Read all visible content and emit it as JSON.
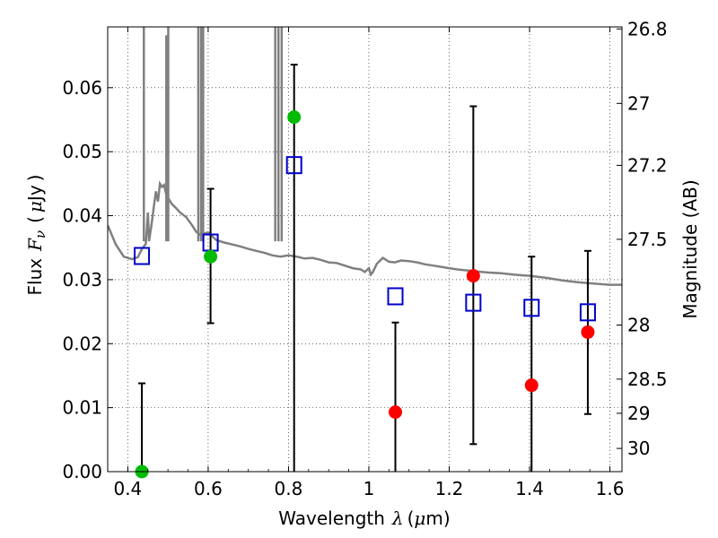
{
  "chart_data": {
    "type": "scatter",
    "xlabel_text": "Wavelength",
    "xlabel_symbol": "λ",
    "xlabel_unit_open": "(",
    "xlabel_unit_mu": "μ",
    "xlabel_unit_rest": "m)",
    "ylabel_text": "Flux",
    "ylabel_symbol": "F",
    "ylabel_subscript": "ν",
    "ylabel_unit_open": "(",
    "ylabel_unit_mu": "μ",
    "ylabel_unit_rest": "Jy",
    "ylabel_unit_close": ")",
    "y2label": "Magnitude (AB)",
    "xlim": [
      0.35,
      1.63
    ],
    "ylim": [
      0.0,
      0.0695
    ],
    "xticks": [
      {
        "value": 0.4,
        "label": "0.4"
      },
      {
        "value": 0.6,
        "label": "0.6"
      },
      {
        "value": 0.8,
        "label": "0.8"
      },
      {
        "value": 1.0,
        "label": "1"
      },
      {
        "value": 1.2,
        "label": "1.2"
      },
      {
        "value": 1.4,
        "label": "1.4"
      },
      {
        "value": 1.6,
        "label": "1.6"
      }
    ],
    "yticks": [
      {
        "value": 0.0,
        "label": "0.00"
      },
      {
        "value": 0.01,
        "label": "0.01"
      },
      {
        "value": 0.02,
        "label": "0.02"
      },
      {
        "value": 0.03,
        "label": "0.03"
      },
      {
        "value": 0.04,
        "label": "0.04"
      },
      {
        "value": 0.05,
        "label": "0.05"
      },
      {
        "value": 0.06,
        "label": "0.06"
      }
    ],
    "y2ticks": [
      {
        "value": 26.8,
        "label": "26.8"
      },
      {
        "value": 27.0,
        "label": "27"
      },
      {
        "value": 27.2,
        "label": "27.2"
      },
      {
        "value": 27.5,
        "label": "27.5"
      },
      {
        "value": 28.0,
        "label": "28"
      },
      {
        "value": 28.5,
        "label": "28.5"
      },
      {
        "value": 29.0,
        "label": "29"
      },
      {
        "value": 30.0,
        "label": "30"
      }
    ],
    "grid": true,
    "colors": {
      "model": "#808080",
      "detection": "#00bb00",
      "upper_limit": "#ff0000",
      "synthetic": "#0000cc",
      "errorbar": "#000000"
    },
    "observed": [
      {
        "x": 0.435,
        "y": 0.0,
        "err_low": 0.0,
        "err_high": 0.0138,
        "kind": "detection"
      },
      {
        "x": 0.606,
        "y": 0.0336,
        "err_low": 0.0232,
        "err_high": 0.0442,
        "kind": "detection"
      },
      {
        "x": 0.814,
        "y": 0.0554,
        "err_low": 0.0,
        "err_high": 0.0636,
        "kind": "detection"
      },
      {
        "x": 1.066,
        "y": 0.0093,
        "err_low": 0.0,
        "err_high": 0.0233,
        "kind": "upper_limit"
      },
      {
        "x": 1.26,
        "y": 0.0306,
        "err_low": 0.0043,
        "err_high": 0.0571,
        "kind": "upper_limit"
      },
      {
        "x": 1.405,
        "y": 0.0135,
        "err_low": 0.0,
        "err_high": 0.0336,
        "kind": "upper_limit"
      },
      {
        "x": 1.545,
        "y": 0.0218,
        "err_low": 0.009,
        "err_high": 0.0345,
        "kind": "upper_limit"
      }
    ],
    "synthetic_photometry": [
      {
        "x": 0.435,
        "y": 0.0337
      },
      {
        "x": 0.606,
        "y": 0.0358
      },
      {
        "x": 0.814,
        "y": 0.0479
      },
      {
        "x": 1.066,
        "y": 0.0274
      },
      {
        "x": 1.26,
        "y": 0.0264
      },
      {
        "x": 1.405,
        "y": 0.0256
      },
      {
        "x": 1.545,
        "y": 0.0249
      }
    ],
    "model_spectrum": [
      [
        0.35,
        0.0385
      ],
      [
        0.37,
        0.0355
      ],
      [
        0.39,
        0.0336
      ],
      [
        0.41,
        0.0332
      ],
      [
        0.425,
        0.0335
      ],
      [
        0.435,
        0.0348
      ],
      [
        0.445,
        0.0356
      ],
      [
        0.45,
        0.0405
      ],
      [
        0.453,
        0.036
      ],
      [
        0.46,
        0.039
      ],
      [
        0.465,
        0.0415
      ],
      [
        0.47,
        0.0438
      ],
      [
        0.475,
        0.0422
      ],
      [
        0.48,
        0.045
      ],
      [
        0.485,
        0.0445
      ],
      [
        0.49,
        0.0448
      ],
      [
        0.497,
        0.043
      ],
      [
        0.503,
        0.0425
      ],
      [
        0.51,
        0.0418
      ],
      [
        0.52,
        0.0412
      ],
      [
        0.53,
        0.0405
      ],
      [
        0.545,
        0.0398
      ],
      [
        0.56,
        0.0385
      ],
      [
        0.57,
        0.0375
      ],
      [
        0.58,
        0.037
      ],
      [
        0.59,
        0.0372
      ],
      [
        0.6,
        0.0374
      ],
      [
        0.61,
        0.0368
      ],
      [
        0.62,
        0.0362
      ],
      [
        0.64,
        0.0358
      ],
      [
        0.66,
        0.0355
      ],
      [
        0.68,
        0.0352
      ],
      [
        0.7,
        0.0348
      ],
      [
        0.72,
        0.0345
      ],
      [
        0.74,
        0.0342
      ],
      [
        0.76,
        0.0338
      ],
      [
        0.78,
        0.0336
      ],
      [
        0.8,
        0.0338
      ],
      [
        0.82,
        0.0336
      ],
      [
        0.84,
        0.0333
      ],
      [
        0.86,
        0.0334
      ],
      [
        0.88,
        0.0331
      ],
      [
        0.9,
        0.0327
      ],
      [
        0.92,
        0.0326
      ],
      [
        0.94,
        0.0322
      ],
      [
        0.96,
        0.0318
      ],
      [
        0.98,
        0.0316
      ],
      [
        0.99,
        0.0312
      ],
      [
        1.0,
        0.0318
      ],
      [
        1.005,
        0.0308
      ],
      [
        1.01,
        0.0312
      ],
      [
        1.02,
        0.0325
      ],
      [
        1.035,
        0.0334
      ],
      [
        1.05,
        0.0328
      ],
      [
        1.065,
        0.0327
      ],
      [
        1.08,
        0.033
      ],
      [
        1.1,
        0.0329
      ],
      [
        1.12,
        0.0327
      ],
      [
        1.14,
        0.0324
      ],
      [
        1.16,
        0.0322
      ],
      [
        1.18,
        0.032
      ],
      [
        1.2,
        0.0318
      ],
      [
        1.22,
        0.0316
      ],
      [
        1.25,
        0.0314
      ],
      [
        1.28,
        0.0312
      ],
      [
        1.3,
        0.0311
      ],
      [
        1.33,
        0.031
      ],
      [
        1.36,
        0.0308
      ],
      [
        1.4,
        0.0306
      ],
      [
        1.44,
        0.0303
      ],
      [
        1.48,
        0.0299
      ],
      [
        1.52,
        0.0296
      ],
      [
        1.56,
        0.0294
      ],
      [
        1.6,
        0.0292
      ],
      [
        1.63,
        0.0292
      ]
    ],
    "emission_lines": [
      {
        "x": 0.44,
        "peak": 0.0695
      },
      {
        "x": 0.5007,
        "peak": 0.0695
      },
      {
        "x": 0.4959,
        "peak": 0.0682
      },
      {
        "x": 0.5755,
        "peak": 0.0695
      },
      {
        "x": 0.5876,
        "peak": 0.0695
      },
      {
        "x": 0.5825,
        "peak": 0.0695
      },
      {
        "x": 0.767,
        "peak": 0.0695
      },
      {
        "x": 0.775,
        "peak": 0.0695
      },
      {
        "x": 0.783,
        "peak": 0.0695
      }
    ]
  }
}
